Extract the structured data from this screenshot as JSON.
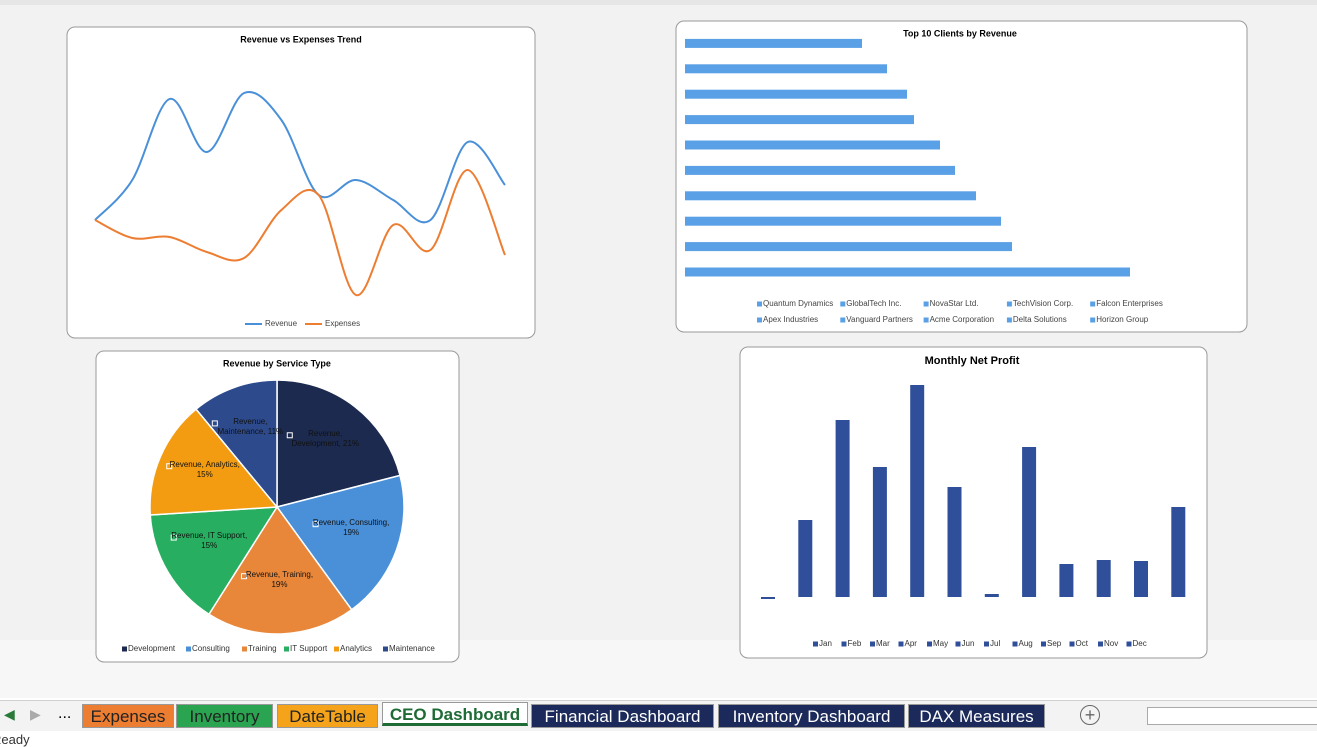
{
  "chart_data": [
    {
      "type": "line",
      "title": "Revenue vs Expenses Trend",
      "categories": [
        null,
        null,
        null,
        null,
        null,
        null,
        null,
        null,
        null,
        null,
        null,
        null
      ],
      "series": [
        {
          "name": "Revenue",
          "color": "#4a90d9",
          "values": [
            80,
            120,
            201,
            148,
            207,
            180,
            105,
            120,
            100,
            80,
            158,
            115
          ]
        },
        {
          "name": "Expenses",
          "color": "#ed7d31",
          "values": [
            80,
            62,
            63,
            48,
            42,
            90,
            105,
            5,
            75,
            50,
            130,
            45
          ]
        }
      ]
    },
    {
      "type": "hbar",
      "title": "Top 10 Clients by Revenue",
      "color": "#5aa0e6",
      "categories": [
        "Quantum Dynamics",
        "GlobalTech Inc.",
        "NovaStar Ltd.",
        "TechVision Corp.",
        "Falcon Enterprises",
        "Apex Industries",
        "Vanguard Partners",
        "Acme Corporation",
        "Delta Solutions",
        "Horizon Group"
      ],
      "values": [
        445,
        327,
        316,
        291,
        270,
        255,
        229,
        222,
        202,
        177
      ]
    },
    {
      "type": "pie",
      "title": "Revenue by Service Type",
      "categories": [
        "Development",
        "Consulting",
        "Training",
        "IT Support",
        "Analytics",
        "Maintenance"
      ],
      "values": [
        21,
        19,
        19,
        15,
        15,
        11
      ],
      "value_labels": [
        "Revenue, Development, 21%",
        "Revenue, Consulting, 19%",
        "Revenue, Training, 19%",
        "Revenue, IT Support, 15%",
        "Revenue, Analytics, 15%",
        "Revenue, Maintenance, 11%"
      ],
      "colors": [
        "#1b2a4e",
        "#4a90d9",
        "#e8873a",
        "#27ae60",
        "#f39c12",
        "#2c4a8c"
      ]
    },
    {
      "type": "bar",
      "title": "Monthly Net Profit",
      "color": "#2f4f9a",
      "categories": [
        "Jan",
        "Feb",
        "Mar",
        "Apr",
        "May",
        "Jun",
        "Jul",
        "Aug",
        "Sep",
        "Oct",
        "Nov",
        "Dec"
      ],
      "values": [
        -2,
        77,
        177,
        130,
        212,
        110,
        3,
        150,
        33,
        37,
        36,
        90
      ]
    }
  ],
  "tabs": [
    {
      "label": "Expenses",
      "color": "#ed7d31"
    },
    {
      "label": "Inventory",
      "color": "#2aa450"
    },
    {
      "label": "DateTable",
      "color": "#f5a31a"
    },
    {
      "label": "CEO Dashboard",
      "color": "#ffffff",
      "active": true
    },
    {
      "label": "Financial Dashboard",
      "color": "#1b2a5a"
    },
    {
      "label": "Inventory Dashboard",
      "color": "#1b2a5a"
    },
    {
      "label": "DAX Measures",
      "color": "#1b2a5a"
    }
  ],
  "more_tabs": "...",
  "status": "Ready"
}
